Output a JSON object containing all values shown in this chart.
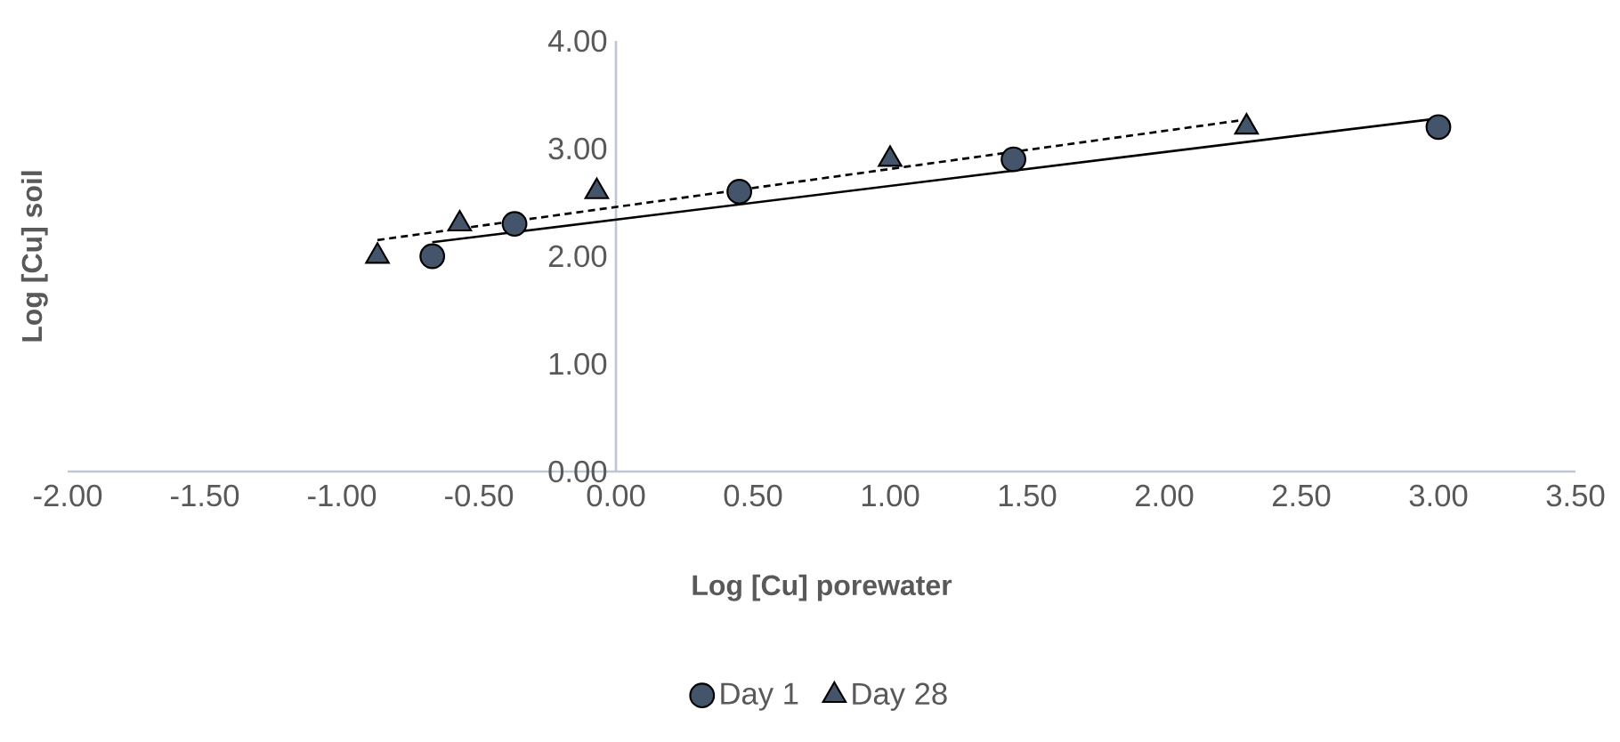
{
  "chart_data": {
    "type": "scatter",
    "xlabel": "Log [Cu] porewater",
    "ylabel": "Log [Cu] soil",
    "xlim": [
      -2,
      3.5
    ],
    "ylim": [
      0,
      4
    ],
    "xticks": [
      {
        "value": -2,
        "label": "-2.00"
      },
      {
        "value": -1.5,
        "label": "-1.50"
      },
      {
        "value": -1,
        "label": "-1.00"
      },
      {
        "value": -0.5,
        "label": "-0.50"
      },
      {
        "value": 0,
        "label": "0.00"
      },
      {
        "value": 0.5,
        "label": "0.50"
      },
      {
        "value": 1,
        "label": "1.00"
      },
      {
        "value": 1.5,
        "label": "1.50"
      },
      {
        "value": 2,
        "label": "2.00"
      },
      {
        "value": 2.5,
        "label": "2.50"
      },
      {
        "value": 3,
        "label": "3.00"
      },
      {
        "value": 3.5,
        "label": "3.50"
      }
    ],
    "yticks": [
      {
        "value": 0,
        "label": "0.00"
      },
      {
        "value": 1,
        "label": "1.00"
      },
      {
        "value": 2,
        "label": "2.00"
      },
      {
        "value": 3,
        "label": "3.00"
      },
      {
        "value": 4,
        "label": "4.00"
      }
    ],
    "legend": "bottom",
    "series": [
      {
        "name": "Day 1",
        "type": "scatter",
        "marker": "circle",
        "color": "#44546a",
        "x": [
          -0.67,
          -0.37,
          0.45,
          1.45,
          3.0
        ],
        "values": [
          2.0,
          2.3,
          2.6,
          2.9,
          3.2
        ]
      },
      {
        "name": "Day 28",
        "type": "scatter",
        "marker": "triangle",
        "color": "#44546a",
        "x": [
          -0.87,
          -0.57,
          -0.07,
          1.0,
          2.3
        ],
        "values": [
          2.0,
          2.3,
          2.6,
          2.9,
          3.2
        ]
      },
      {
        "type": "line",
        "marker": "none",
        "line_style": "solid",
        "color": "#000000",
        "x": [
          -0.67,
          3.0
        ],
        "values": [
          2.13,
          3.28
        ]
      },
      {
        "type": "line",
        "marker": "none",
        "line_style": "dashed",
        "color": "#000000",
        "x": [
          -0.87,
          2.3
        ],
        "values": [
          2.15,
          3.27
        ]
      }
    ]
  }
}
